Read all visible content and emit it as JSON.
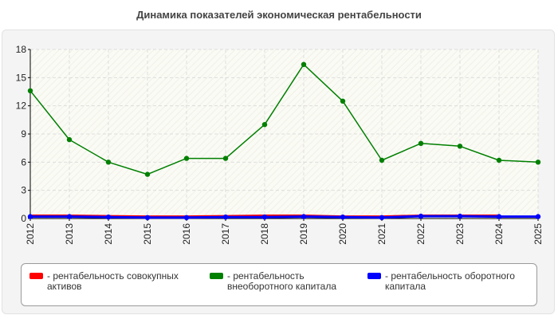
{
  "title": "Динамика показателей экономическая рентабельности",
  "chart_data": {
    "type": "line",
    "title": "Динамика показателей экономическая рентабельности",
    "xlabel": "",
    "ylabel": "",
    "x": [
      "2012",
      "2013",
      "2014",
      "2015",
      "2016",
      "2017",
      "2018",
      "2019",
      "2020",
      "2021",
      "2022",
      "2023",
      "2024",
      "2025"
    ],
    "yticks": [
      "0",
      "3",
      "6",
      "9",
      "12",
      "15",
      "18"
    ],
    "ylim": [
      0,
      18
    ],
    "grid": true,
    "legend_position": "bottom",
    "series": [
      {
        "name": "рентабельность совокупных активов",
        "color": "#ff0000",
        "values": [
          0.3,
          0.3,
          0.25,
          0.2,
          0.2,
          0.25,
          0.3,
          0.3,
          0.2,
          0.2,
          0.3,
          0.3,
          0.3,
          null
        ],
        "markers": false
      },
      {
        "name": "рентабельность внеоборотного капитала",
        "color": "#008000",
        "values": [
          13.6,
          8.4,
          6.0,
          4.7,
          6.4,
          6.4,
          10.0,
          16.4,
          12.5,
          6.2,
          8.0,
          7.7,
          6.2,
          6.0
        ],
        "markers": true
      },
      {
        "name": "рентабельность оборотного капитала",
        "color": "#0000ff",
        "values": [
          0.2,
          0.2,
          0.15,
          0.1,
          0.1,
          0.15,
          0.15,
          0.2,
          0.15,
          0.1,
          0.25,
          0.25,
          0.2,
          0.2
        ],
        "markers": true
      }
    ]
  },
  "legend": {
    "items": [
      {
        "label": "- рентабельность совокупных активов",
        "color": "#ff0000"
      },
      {
        "label": "- рентабельность внеоборотного капитала",
        "color": "#008000"
      },
      {
        "label": "- рентабельность оборотного капитала",
        "color": "#0000ff"
      }
    ]
  }
}
